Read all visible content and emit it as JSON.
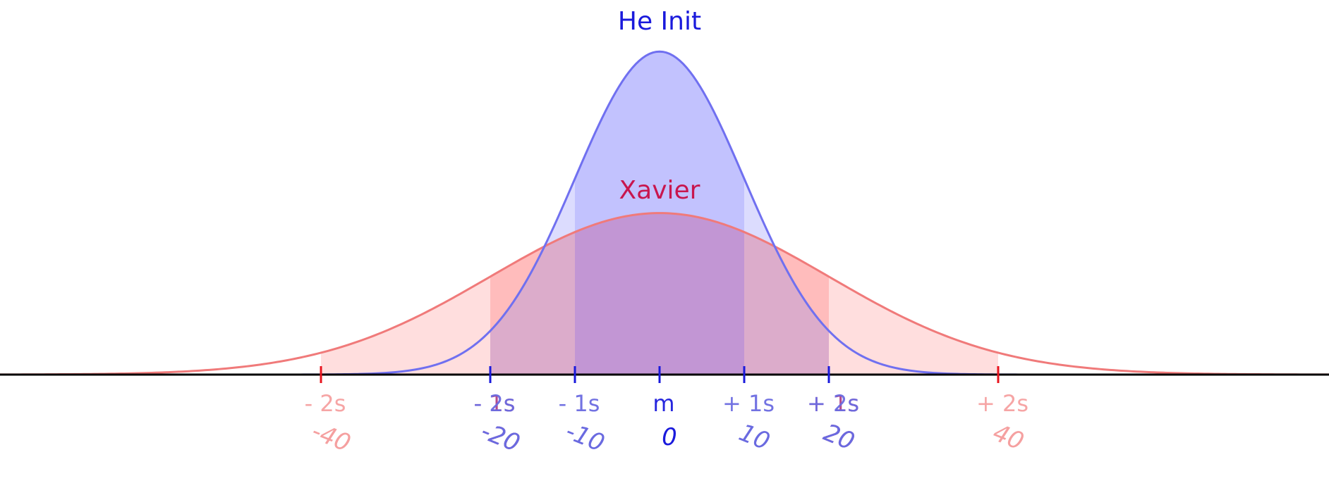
{
  "chart_data": {
    "type": "area",
    "title": "",
    "xlabel": "",
    "ylabel": "",
    "xlim": [
      -80,
      80
    ],
    "ylim": [
      0,
      0.042
    ],
    "grid": false,
    "legend": "none",
    "series": [
      {
        "name": "Xavier",
        "mean": 0,
        "std": 20,
        "line_color": "#f07a7a",
        "fill_color": "#ffdede",
        "band1_fill": "#ffbcbc",
        "label_color": "#c8164e",
        "tick_color": "#e8141e",
        "axis_label_color": "#f5a0a0",
        "sigma_labels": [
          {
            "k": -2,
            "text": "- 2s",
            "num": "-40"
          },
          {
            "k": -1,
            "text": "- 1s",
            "num": "-20"
          },
          {
            "k": 1,
            "text": "+ 1s",
            "num": "20"
          },
          {
            "k": 2,
            "text": "+ 2s",
            "num": "40"
          }
        ]
      },
      {
        "name": "He Init",
        "mean": 0,
        "std": 10,
        "line_color": "#7070f0",
        "fill_color": "#c2c2fe",
        "band2_fill": "#d8d8fe",
        "label_color": "#1a1adc",
        "tick_color": "#1a1adc",
        "axis_label_color": "#6a6ae0",
        "sigma_labels": [
          {
            "k": -2,
            "text": "- 2s",
            "num": "-20"
          },
          {
            "k": -1,
            "text": "- 1s",
            "num": "-10"
          },
          {
            "k": 0,
            "text": "m",
            "num": "0"
          },
          {
            "k": 1,
            "text": "+ 1s",
            "num": "10"
          },
          {
            "k": 2,
            "text": "+ 2s",
            "num": "20"
          }
        ]
      }
    ],
    "overlap": {
      "inner_fill": "#c296d4",
      "middle_fill": "#dcaccb",
      "mixed_label_color": "#b04088"
    }
  }
}
